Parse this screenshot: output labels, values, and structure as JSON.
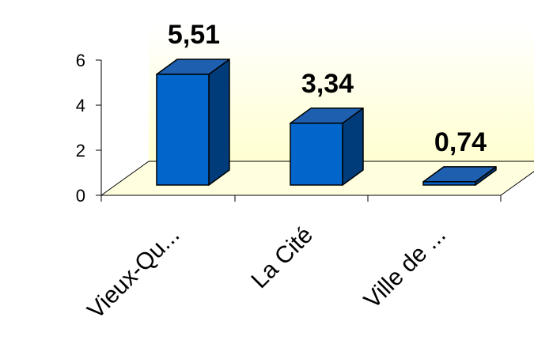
{
  "chart_data": {
    "type": "bar",
    "categories": [
      "Vieux-Qu...",
      "La Cité",
      "Ville de ..."
    ],
    "values": [
      5.51,
      3.34,
      0.74
    ],
    "data_labels": [
      "5,51",
      "3,34",
      "0,74"
    ],
    "title": "",
    "xlabel": "",
    "ylabel": "",
    "ylim": [
      0,
      6
    ],
    "yticks": [
      0,
      2,
      4,
      6
    ],
    "ytick_labels": [
      "0",
      "2",
      "4",
      "6"
    ],
    "style": "3d-column",
    "grid": false,
    "legend": "none",
    "colors": {
      "bar_front": "#0066CC",
      "bar_side": "#003C7A",
      "bar_top": "#1E5FAF",
      "bar_outline": "#000000",
      "wall_top": "#FFFFFF",
      "wall_bottom": "#FFFFD0",
      "floor": "#FFFFE0",
      "axis": "#000000"
    }
  }
}
